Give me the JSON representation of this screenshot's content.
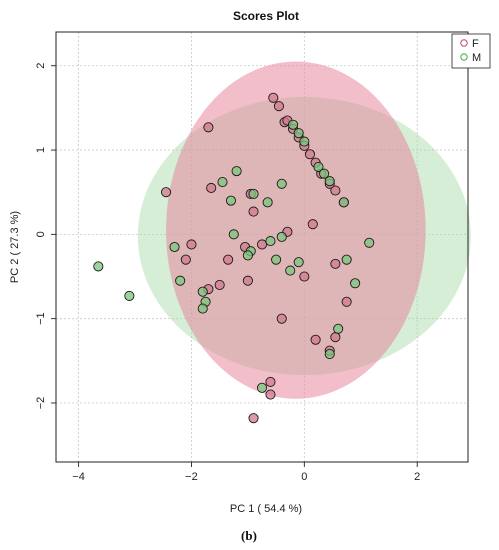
{
  "chart_data": {
    "type": "scatter",
    "title": "Scores Plot",
    "xlabel": "PC 1 ( 54.4 %)",
    "ylabel": "PC 2 ( 27.3 %)",
    "xlim": [
      -4.4,
      2.9
    ],
    "ylim": [
      -2.7,
      2.4
    ],
    "x_ticks": [
      -4,
      -2,
      0,
      2
    ],
    "y_ticks": [
      -2,
      -1,
      0,
      1,
      2
    ],
    "x_tick_labels": [
      "−4",
      "−2",
      "0",
      "2"
    ],
    "y_tick_labels": [
      "−2",
      "−1",
      "0",
      "1",
      "2"
    ],
    "grid": true,
    "legend_position": "top-right",
    "caption": "(b)",
    "series": [
      {
        "name": "F",
        "color": "#e8899e",
        "ellipse": {
          "cx": -0.15,
          "cy": 0.05,
          "rx": 2.3,
          "ry": 2.0
        },
        "points": [
          [
            -0.55,
            1.62
          ],
          [
            -0.45,
            1.52
          ],
          [
            -0.35,
            1.33
          ],
          [
            -1.7,
            1.27
          ],
          [
            -0.3,
            1.35
          ],
          [
            -0.2,
            1.25
          ],
          [
            -0.1,
            1.15
          ],
          [
            0.0,
            1.05
          ],
          [
            0.1,
            0.95
          ],
          [
            0.2,
            0.85
          ],
          [
            0.3,
            0.72
          ],
          [
            0.45,
            0.6
          ],
          [
            0.55,
            0.52
          ],
          [
            0.7,
            0.38
          ],
          [
            -2.45,
            0.5
          ],
          [
            -1.65,
            0.55
          ],
          [
            -0.95,
            0.48
          ],
          [
            -0.9,
            0.27
          ],
          [
            -0.3,
            0.03
          ],
          [
            0.15,
            0.12
          ],
          [
            -1.05,
            -0.15
          ],
          [
            -0.75,
            -0.12
          ],
          [
            -2.0,
            -0.12
          ],
          [
            -2.1,
            -0.3
          ],
          [
            -1.35,
            -0.3
          ],
          [
            0.55,
            -0.35
          ],
          [
            0.0,
            -0.5
          ],
          [
            -1.5,
            -0.6
          ],
          [
            -1.7,
            -0.65
          ],
          [
            -1.0,
            -0.55
          ],
          [
            0.75,
            -0.8
          ],
          [
            -0.4,
            -1.0
          ],
          [
            0.55,
            -1.22
          ],
          [
            0.2,
            -1.25
          ],
          [
            0.45,
            -1.38
          ],
          [
            -0.6,
            -1.75
          ],
          [
            -0.6,
            -1.9
          ],
          [
            -0.9,
            -2.18
          ]
        ]
      },
      {
        "name": "M",
        "color": "#a5d8a5",
        "ellipse": {
          "cx": 0.0,
          "cy": -0.02,
          "rx": 2.95,
          "ry": 1.65
        },
        "points": [
          [
            -0.2,
            1.3
          ],
          [
            -0.1,
            1.2
          ],
          [
            0.0,
            1.1
          ],
          [
            0.25,
            0.8
          ],
          [
            0.35,
            0.72
          ],
          [
            0.45,
            0.63
          ],
          [
            -1.2,
            0.75
          ],
          [
            -1.45,
            0.62
          ],
          [
            -0.4,
            0.6
          ],
          [
            -0.9,
            0.48
          ],
          [
            -1.3,
            0.4
          ],
          [
            -0.65,
            0.38
          ],
          [
            0.7,
            0.38
          ],
          [
            -1.25,
            0.0
          ],
          [
            -0.6,
            -0.08
          ],
          [
            -0.4,
            -0.03
          ],
          [
            -2.3,
            -0.15
          ],
          [
            -0.95,
            -0.2
          ],
          [
            -0.5,
            -0.3
          ],
          [
            -0.1,
            -0.33
          ],
          [
            -0.25,
            -0.43
          ],
          [
            -1.0,
            -0.25
          ],
          [
            -3.65,
            -0.38
          ],
          [
            -2.2,
            -0.55
          ],
          [
            -1.8,
            -0.68
          ],
          [
            -1.75,
            -0.8
          ],
          [
            -1.8,
            -0.88
          ],
          [
            -3.1,
            -0.73
          ],
          [
            0.75,
            -0.3
          ],
          [
            1.15,
            -0.1
          ],
          [
            0.9,
            -0.58
          ],
          [
            0.6,
            -1.12
          ],
          [
            0.45,
            -1.42
          ],
          [
            -0.75,
            -1.82
          ]
        ]
      }
    ]
  }
}
